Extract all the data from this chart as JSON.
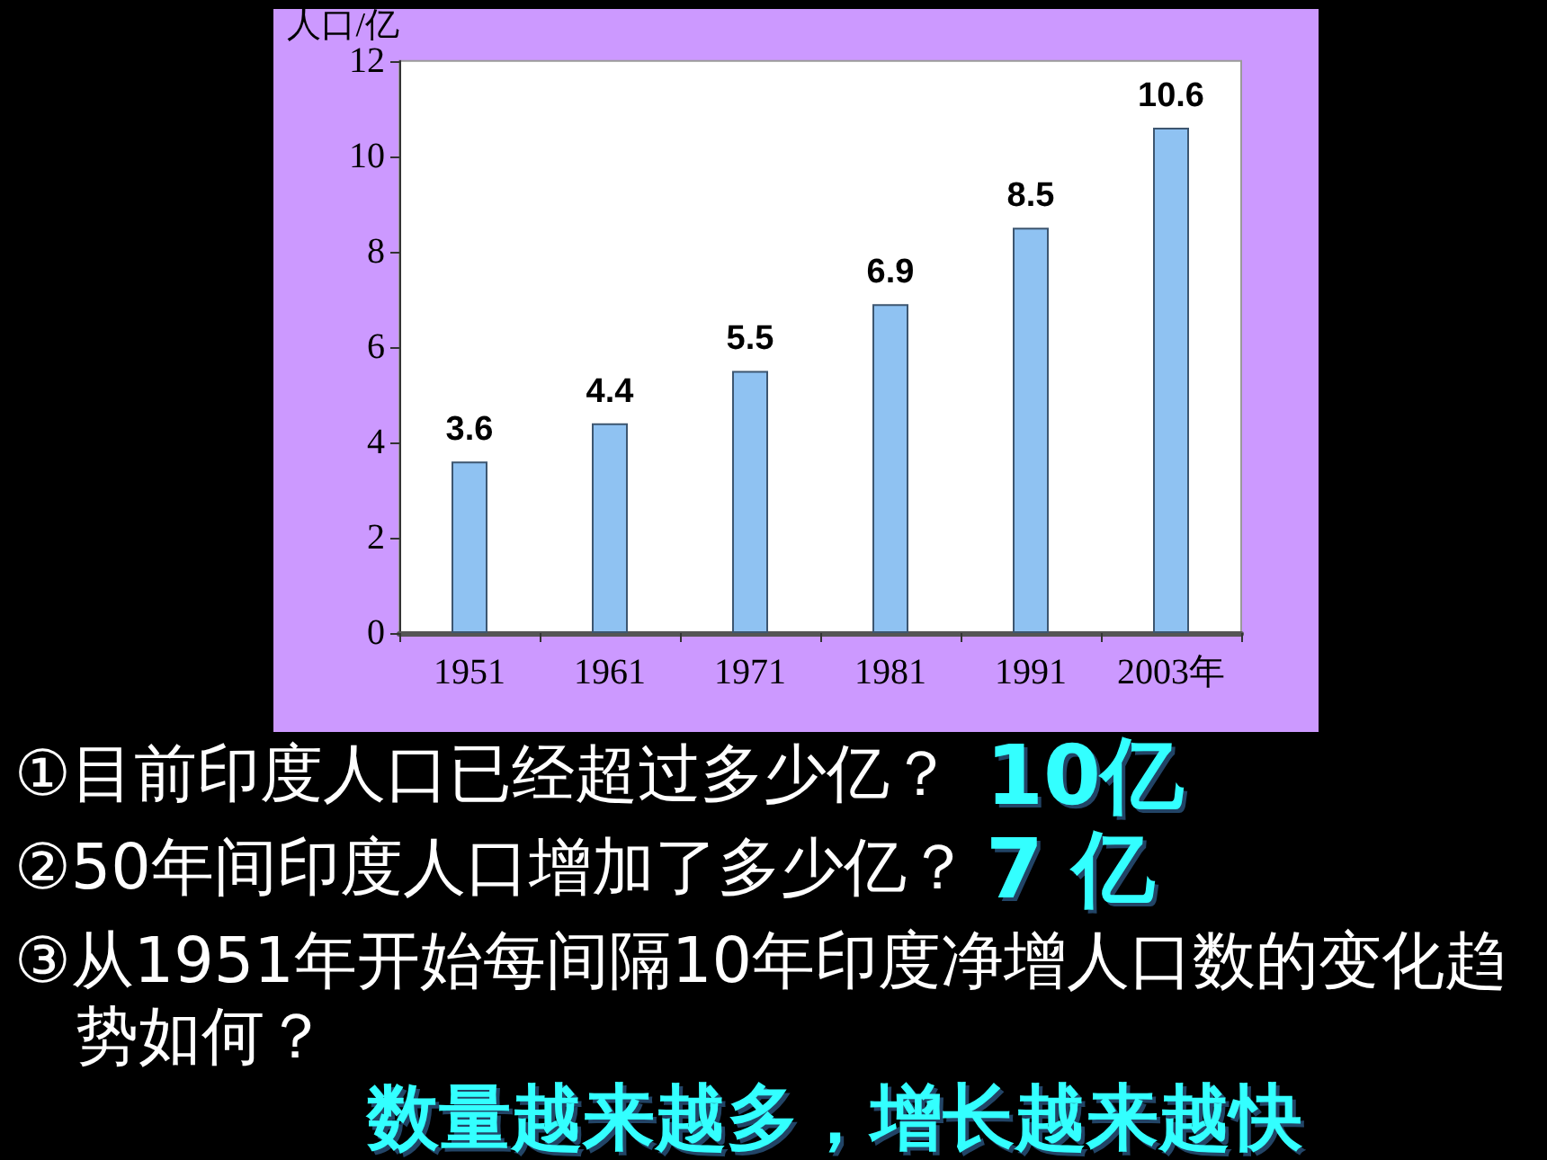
{
  "chart_data": {
    "type": "bar",
    "ylabel": "人口/亿",
    "categories": [
      "1951",
      "1961",
      "1971",
      "1981",
      "1991",
      "2003年"
    ],
    "values": [
      3.6,
      4.4,
      5.5,
      6.9,
      8.5,
      10.6
    ],
    "color": "#8fc2f2",
    "ylim": [
      0,
      12
    ],
    "yticks": [
      0,
      2,
      4,
      6,
      8,
      10,
      12
    ],
    "data_labels": true,
    "annotations": [
      "①目前印度人口已经超过多少亿？",
      "10亿",
      "②50年间印度人口增加了多少亿？",
      "7 亿",
      "③从1951年开始每间隔10年印度净增人口数的变化趋势如何？",
      "数量越来越多，增长越来越快"
    ]
  }
}
